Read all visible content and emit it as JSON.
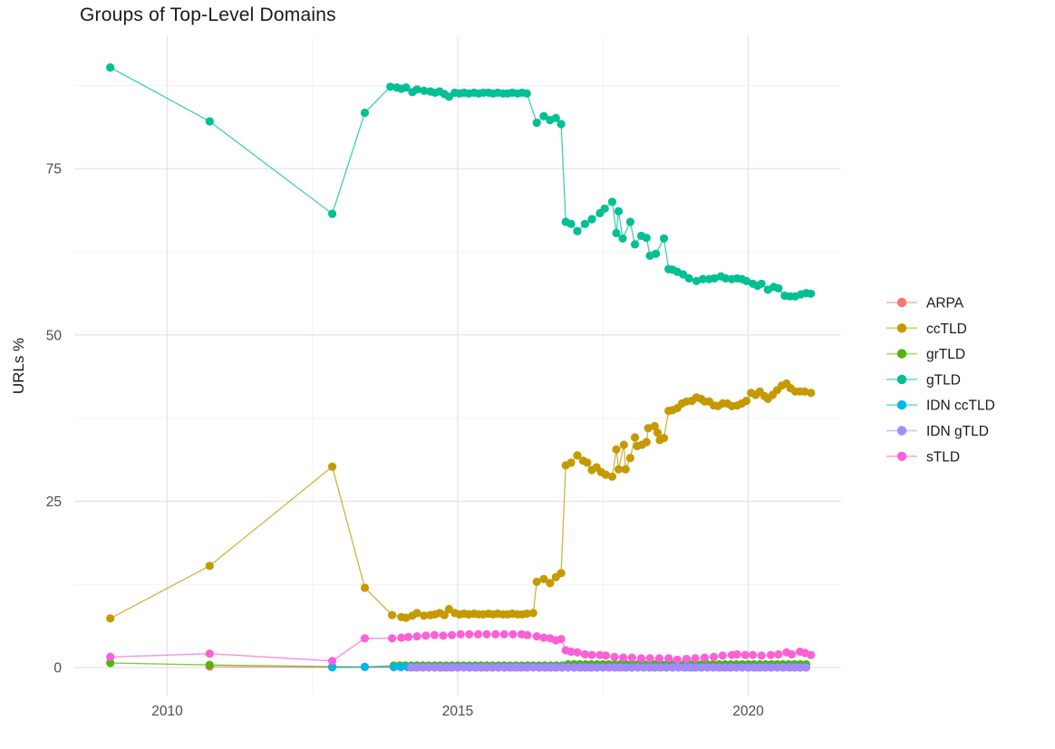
{
  "chart_data": {
    "type": "line",
    "title": "Groups of Top-Level Domains",
    "xlabel": "",
    "ylabel": "URLs %",
    "xlim": [
      2008.4,
      2021.6
    ],
    "ylim": [
      -4.2,
      94.9
    ],
    "x_ticks": [
      {
        "value": 2010,
        "label": "2010"
      },
      {
        "value": 2015,
        "label": "2015"
      },
      {
        "value": 2020,
        "label": "2020"
      }
    ],
    "y_ticks": [
      {
        "value": 0,
        "label": "0"
      },
      {
        "value": 25,
        "label": "25"
      },
      {
        "value": 50,
        "label": "50"
      },
      {
        "value": 75,
        "label": "75"
      }
    ],
    "x_minor_ticks": [
      2012.5,
      2017.5
    ],
    "y_minor_ticks": [
      12.5,
      37.5,
      62.5,
      87.5
    ],
    "grid": true,
    "legend_position": "right",
    "grid_major_color": "#e3e3e3",
    "grid_minor_color": "#efefef",
    "tick_label_color": "#4d4d4d",
    "axis_title_color": "#1a1a1a",
    "series": [
      {
        "name": "ARPA",
        "color": "#F8766D",
        "points": [
          [
            2010.73,
            0.15
          ],
          [
            2012.84,
            0.05
          ]
        ],
        "segments": [
          {
            "from": 2013.9,
            "to": 2021.06,
            "step": 0.12,
            "value": 0.05
          }
        ]
      },
      {
        "name": "ccTLD",
        "color": "#C49A00",
        "points": [
          [
            2009.02,
            7.4
          ],
          [
            2010.73,
            15.3
          ],
          [
            2012.84,
            30.2
          ],
          [
            2013.4,
            12.0
          ],
          [
            2013.87,
            7.9
          ],
          [
            2014.03,
            7.6
          ],
          [
            2014.11,
            7.5
          ],
          [
            2014.22,
            7.8
          ],
          [
            2014.3,
            8.2
          ],
          [
            2014.42,
            7.8
          ],
          [
            2014.53,
            7.9
          ],
          [
            2014.61,
            8.0
          ],
          [
            2014.69,
            8.2
          ],
          [
            2014.77,
            7.9
          ],
          [
            2014.85,
            8.8
          ],
          [
            2014.95,
            8.2
          ],
          [
            2015.03,
            8.0
          ],
          [
            2015.11,
            8.1
          ],
          [
            2015.19,
            8.0
          ],
          [
            2015.28,
            8.1
          ],
          [
            2015.36,
            8.0
          ],
          [
            2015.44,
            8.0
          ],
          [
            2015.53,
            8.1
          ],
          [
            2015.61,
            8.0
          ],
          [
            2015.69,
            8.1
          ],
          [
            2015.78,
            8.0
          ],
          [
            2015.86,
            8.0
          ],
          [
            2015.94,
            8.1
          ],
          [
            2016.03,
            8.0
          ],
          [
            2016.11,
            8.0
          ],
          [
            2016.19,
            8.1
          ],
          [
            2016.3,
            8.2
          ],
          [
            2016.36,
            12.9
          ],
          [
            2016.48,
            13.3
          ],
          [
            2016.59,
            12.7
          ],
          [
            2016.69,
            13.6
          ],
          [
            2016.78,
            14.2
          ],
          [
            2016.86,
            30.4
          ],
          [
            2016.95,
            30.8
          ],
          [
            2017.06,
            31.9
          ],
          [
            2017.16,
            31.1
          ],
          [
            2017.23,
            30.8
          ],
          [
            2017.31,
            29.7
          ],
          [
            2017.39,
            30.1
          ],
          [
            2017.47,
            29.4
          ],
          [
            2017.55,
            29.0
          ],
          [
            2017.66,
            28.7
          ],
          [
            2017.73,
            32.8
          ],
          [
            2017.77,
            29.8
          ],
          [
            2017.86,
            33.5
          ],
          [
            2017.89,
            29.8
          ],
          [
            2017.97,
            31.5
          ],
          [
            2018.05,
            34.6
          ],
          [
            2018.09,
            33.3
          ],
          [
            2018.17,
            33.5
          ],
          [
            2018.25,
            33.9
          ],
          [
            2018.28,
            36.0
          ],
          [
            2018.39,
            36.3
          ],
          [
            2018.44,
            35.3
          ],
          [
            2018.48,
            34.2
          ],
          [
            2018.55,
            34.5
          ],
          [
            2018.63,
            38.6
          ],
          [
            2018.7,
            38.7
          ],
          [
            2018.78,
            39.0
          ],
          [
            2018.86,
            39.7
          ],
          [
            2018.94,
            40.0
          ],
          [
            2019.03,
            40.1
          ],
          [
            2019.11,
            40.6
          ],
          [
            2019.19,
            40.4
          ],
          [
            2019.25,
            40.0
          ],
          [
            2019.33,
            40.0
          ],
          [
            2019.41,
            39.4
          ],
          [
            2019.48,
            39.3
          ],
          [
            2019.56,
            39.7
          ],
          [
            2019.64,
            39.7
          ],
          [
            2019.72,
            39.3
          ],
          [
            2019.81,
            39.4
          ],
          [
            2019.89,
            39.7
          ],
          [
            2019.97,
            40.1
          ],
          [
            2020.05,
            41.3
          ],
          [
            2020.13,
            41.0
          ],
          [
            2020.2,
            41.5
          ],
          [
            2020.28,
            40.8
          ],
          [
            2020.34,
            40.4
          ],
          [
            2020.42,
            41.0
          ],
          [
            2020.5,
            41.7
          ],
          [
            2020.58,
            42.4
          ],
          [
            2020.66,
            42.7
          ],
          [
            2020.73,
            42.0
          ],
          [
            2020.81,
            41.5
          ],
          [
            2020.89,
            41.5
          ],
          [
            2020.97,
            41.5
          ],
          [
            2021.08,
            41.3
          ]
        ]
      },
      {
        "name": "grTLD",
        "color": "#53B400",
        "points": [
          [
            2009.02,
            0.7
          ],
          [
            2010.73,
            0.4
          ],
          [
            2012.84,
            0.15
          ],
          [
            2013.4,
            0.1
          ]
        ],
        "segments": [
          {
            "from": 2013.9,
            "to": 2016.8,
            "step": 0.1,
            "value": 0.3
          },
          {
            "from": 2016.9,
            "to": 2021.06,
            "step": 0.1,
            "value": 0.5
          }
        ]
      },
      {
        "name": "gTLD",
        "color": "#00C094",
        "points": [
          [
            2009.02,
            90.2
          ],
          [
            2010.73,
            82.1
          ],
          [
            2012.84,
            68.2
          ],
          [
            2013.4,
            83.4
          ],
          [
            2013.84,
            87.3
          ],
          [
            2013.95,
            87.2
          ],
          [
            2014.03,
            87.0
          ],
          [
            2014.11,
            87.2
          ],
          [
            2014.22,
            86.5
          ],
          [
            2014.3,
            86.9
          ],
          [
            2014.42,
            86.7
          ],
          [
            2014.53,
            86.6
          ],
          [
            2014.61,
            86.4
          ],
          [
            2014.69,
            86.6
          ],
          [
            2014.77,
            86.2
          ],
          [
            2014.85,
            85.8
          ],
          [
            2014.95,
            86.4
          ],
          [
            2015.03,
            86.3
          ],
          [
            2015.11,
            86.4
          ],
          [
            2015.19,
            86.3
          ],
          [
            2015.28,
            86.4
          ],
          [
            2015.36,
            86.3
          ],
          [
            2015.44,
            86.4
          ],
          [
            2015.53,
            86.4
          ],
          [
            2015.61,
            86.3
          ],
          [
            2015.69,
            86.4
          ],
          [
            2015.78,
            86.3
          ],
          [
            2015.86,
            86.3
          ],
          [
            2015.94,
            86.4
          ],
          [
            2016.03,
            86.3
          ],
          [
            2016.11,
            86.4
          ],
          [
            2016.19,
            86.3
          ],
          [
            2016.36,
            81.9
          ],
          [
            2016.48,
            82.9
          ],
          [
            2016.59,
            82.3
          ],
          [
            2016.69,
            82.6
          ],
          [
            2016.78,
            81.7
          ],
          [
            2016.86,
            67.0
          ],
          [
            2016.95,
            66.7
          ],
          [
            2017.06,
            65.6
          ],
          [
            2017.19,
            66.7
          ],
          [
            2017.31,
            67.4
          ],
          [
            2017.45,
            68.3
          ],
          [
            2017.53,
            69.0
          ],
          [
            2017.66,
            70.0
          ],
          [
            2017.73,
            65.3
          ],
          [
            2017.77,
            68.6
          ],
          [
            2017.84,
            64.5
          ],
          [
            2017.97,
            67.0
          ],
          [
            2018.05,
            63.6
          ],
          [
            2018.16,
            64.9
          ],
          [
            2018.25,
            64.6
          ],
          [
            2018.31,
            61.9
          ],
          [
            2018.41,
            62.2
          ],
          [
            2018.55,
            64.5
          ],
          [
            2018.63,
            59.9
          ],
          [
            2018.7,
            59.8
          ],
          [
            2018.78,
            59.5
          ],
          [
            2018.88,
            59.1
          ],
          [
            2018.98,
            58.5
          ],
          [
            2019.11,
            58.1
          ],
          [
            2019.22,
            58.4
          ],
          [
            2019.33,
            58.4
          ],
          [
            2019.42,
            58.5
          ],
          [
            2019.53,
            58.8
          ],
          [
            2019.61,
            58.5
          ],
          [
            2019.72,
            58.4
          ],
          [
            2019.81,
            58.5
          ],
          [
            2019.89,
            58.4
          ],
          [
            2019.97,
            58.1
          ],
          [
            2020.08,
            57.7
          ],
          [
            2020.16,
            57.4
          ],
          [
            2020.23,
            57.7
          ],
          [
            2020.34,
            56.8
          ],
          [
            2020.44,
            57.2
          ],
          [
            2020.52,
            57.0
          ],
          [
            2020.63,
            55.9
          ],
          [
            2020.72,
            55.8
          ],
          [
            2020.81,
            55.8
          ],
          [
            2020.91,
            56.1
          ],
          [
            2021.0,
            56.3
          ],
          [
            2021.08,
            56.2
          ]
        ]
      },
      {
        "name": "IDN ccTLD",
        "color": "#00B6EB",
        "points": [
          [
            2012.84,
            0.05
          ],
          [
            2013.4,
            0.1
          ]
        ],
        "segments": [
          {
            "from": 2013.9,
            "to": 2021.06,
            "step": 0.12,
            "value": 0.12
          }
        ]
      },
      {
        "name": "IDN gTLD",
        "color": "#A58AFF",
        "points": [],
        "segments": [
          {
            "from": 2014.2,
            "to": 2021.06,
            "step": 0.1,
            "value": 0.02
          }
        ]
      },
      {
        "name": "sTLD",
        "color": "#FB61D7",
        "points": [
          [
            2009.02,
            1.6
          ],
          [
            2010.73,
            2.1
          ],
          [
            2012.84,
            1.0
          ],
          [
            2013.4,
            4.4
          ],
          [
            2013.87,
            4.4
          ],
          [
            2014.03,
            4.5
          ],
          [
            2014.15,
            4.6
          ],
          [
            2014.3,
            4.7
          ],
          [
            2014.45,
            4.8
          ],
          [
            2014.6,
            4.9
          ],
          [
            2014.75,
            4.8
          ],
          [
            2014.9,
            4.9
          ],
          [
            2015.05,
            5.0
          ],
          [
            2015.2,
            5.0
          ],
          [
            2015.35,
            5.0
          ],
          [
            2015.5,
            5.0
          ],
          [
            2015.65,
            5.0
          ],
          [
            2015.8,
            5.0
          ],
          [
            2015.95,
            5.0
          ],
          [
            2016.1,
            5.0
          ],
          [
            2016.2,
            4.9
          ],
          [
            2016.36,
            4.7
          ],
          [
            2016.48,
            4.5
          ],
          [
            2016.59,
            4.4
          ],
          [
            2016.69,
            4.1
          ],
          [
            2016.78,
            4.3
          ],
          [
            2016.86,
            2.6
          ],
          [
            2016.95,
            2.4
          ],
          [
            2017.06,
            2.3
          ],
          [
            2017.19,
            2.0
          ],
          [
            2017.31,
            1.9
          ],
          [
            2017.45,
            1.9
          ],
          [
            2017.55,
            1.8
          ],
          [
            2017.7,
            1.6
          ],
          [
            2017.85,
            1.5
          ],
          [
            2018.0,
            1.5
          ],
          [
            2018.16,
            1.4
          ],
          [
            2018.31,
            1.4
          ],
          [
            2018.47,
            1.4
          ],
          [
            2018.63,
            1.4
          ],
          [
            2018.78,
            1.2
          ],
          [
            2018.94,
            1.3
          ],
          [
            2019.09,
            1.4
          ],
          [
            2019.25,
            1.5
          ],
          [
            2019.41,
            1.6
          ],
          [
            2019.56,
            1.8
          ],
          [
            2019.72,
            1.9
          ],
          [
            2019.81,
            2.0
          ],
          [
            2019.95,
            1.9
          ],
          [
            2020.08,
            1.9
          ],
          [
            2020.23,
            1.8
          ],
          [
            2020.39,
            1.9
          ],
          [
            2020.52,
            2.0
          ],
          [
            2020.66,
            2.3
          ],
          [
            2020.75,
            2.0
          ],
          [
            2020.89,
            2.4
          ],
          [
            2020.98,
            2.2
          ],
          [
            2021.08,
            1.9
          ]
        ]
      }
    ]
  }
}
